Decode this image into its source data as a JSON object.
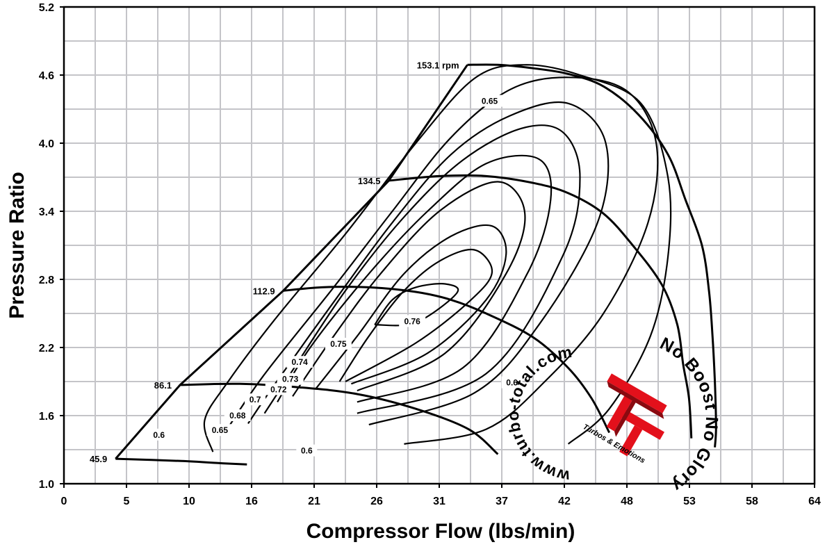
{
  "chart_data": {
    "type": "line",
    "title": "",
    "xlabel": "Compressor Flow (lbs/min)",
    "ylabel": "Pressure Ratio",
    "x_ticks": [
      "0",
      "5",
      "10",
      "16",
      "21",
      "26",
      "31",
      "37",
      "42",
      "48",
      "53",
      "58",
      "64"
    ],
    "y_ticks": [
      "1.0",
      "1.6",
      "2.2",
      "2.8",
      "3.4",
      "4.0",
      "4.6",
      "5.2"
    ],
    "xlim": [
      0,
      64
    ],
    "ylim": [
      1.0,
      5.2
    ],
    "grid": true,
    "speed_lines": [
      {
        "name": "45.9",
        "points": [
          [
            4.4,
            1.22
          ],
          [
            10,
            1.2
          ],
          [
            13.5,
            1.18
          ],
          [
            15.6,
            1.17
          ]
        ]
      },
      {
        "name": "86.1",
        "points": [
          [
            9.9,
            1.87
          ],
          [
            15,
            1.88
          ],
          [
            20,
            1.85
          ],
          [
            25,
            1.79
          ],
          [
            30,
            1.66
          ],
          [
            34.5,
            1.48
          ],
          [
            37,
            1.26
          ]
        ]
      },
      {
        "name": "112.9",
        "points": [
          [
            18.7,
            2.7
          ],
          [
            22,
            2.73
          ],
          [
            26,
            2.73
          ],
          [
            30,
            2.69
          ],
          [
            33,
            2.62
          ],
          [
            36,
            2.5
          ],
          [
            40,
            2.29
          ],
          [
            43,
            2.02
          ],
          [
            45,
            1.75
          ],
          [
            46.5,
            1.45
          ]
        ]
      },
      {
        "name": "134.5",
        "points": [
          [
            27.7,
            3.67
          ],
          [
            32,
            3.71
          ],
          [
            36,
            3.71
          ],
          [
            40,
            3.65
          ],
          [
            43,
            3.56
          ],
          [
            46,
            3.38
          ],
          [
            48.5,
            3.1
          ],
          [
            51,
            2.75
          ],
          [
            52.3,
            2.4
          ],
          [
            52.8,
            2.05
          ],
          [
            53.3,
            1.75
          ],
          [
            53.5,
            1.4
          ]
        ]
      },
      {
        "name": "153.1 rpm",
        "points": [
          [
            34.4,
            4.69
          ],
          [
            37,
            4.69
          ],
          [
            40,
            4.66
          ],
          [
            43,
            4.61
          ],
          [
            46,
            4.5
          ],
          [
            49,
            4.25
          ],
          [
            51.5,
            3.9
          ],
          [
            53,
            3.5
          ],
          [
            54.4,
            3.1
          ],
          [
            55,
            2.7
          ],
          [
            55.3,
            2.3
          ],
          [
            55.5,
            1.9
          ],
          [
            55.6,
            1.5
          ],
          [
            55.5,
            1.32
          ]
        ]
      }
    ],
    "surge_line": [
      [
        4.4,
        1.22
      ],
      [
        9.9,
        1.87
      ],
      [
        18.7,
        2.7
      ],
      [
        27.7,
        3.67
      ],
      [
        34.4,
        4.69
      ]
    ],
    "efficiency_islands": [
      {
        "name": "0.76",
        "points": [
          [
            26.5,
            2.4
          ],
          [
            28,
            2.62
          ],
          [
            30,
            2.73
          ],
          [
            32.5,
            2.76
          ],
          [
            33.5,
            2.68
          ],
          [
            30,
            2.42
          ],
          [
            26.5,
            2.4
          ]
        ]
      },
      {
        "name": "0.75",
        "points": [
          [
            23.5,
            1.9
          ],
          [
            26,
            2.3
          ],
          [
            29,
            2.7
          ],
          [
            32,
            2.96
          ],
          [
            35,
            3.06
          ],
          [
            36.5,
            2.86
          ],
          [
            34.5,
            2.6
          ],
          [
            30,
            2.24
          ],
          [
            24,
            1.9
          ]
        ]
      },
      {
        "name": "0.74",
        "points": [
          [
            21.5,
            1.84
          ],
          [
            25,
            2.3
          ],
          [
            29,
            2.85
          ],
          [
            33,
            3.18
          ],
          [
            36.5,
            3.27
          ],
          [
            37.7,
            3.02
          ],
          [
            36,
            2.62
          ],
          [
            31,
            2.15
          ],
          [
            24.5,
            1.88
          ]
        ]
      },
      {
        "name": "0.73",
        "points": [
          [
            19.5,
            1.77
          ],
          [
            23,
            2.3
          ],
          [
            27,
            2.85
          ],
          [
            32,
            3.4
          ],
          [
            37,
            3.66
          ],
          [
            39.3,
            3.38
          ],
          [
            37.7,
            2.85
          ],
          [
            32.5,
            2.15
          ],
          [
            25,
            1.82
          ]
        ]
      },
      {
        "name": "0.72",
        "points": [
          [
            18.2,
            1.72
          ],
          [
            21,
            2.2
          ],
          [
            26,
            2.85
          ],
          [
            31,
            3.4
          ],
          [
            36,
            3.82
          ],
          [
            40.5,
            3.86
          ],
          [
            41.5,
            3.5
          ],
          [
            39.5,
            2.85
          ],
          [
            34,
            2.02
          ],
          [
            25,
            1.72
          ]
        ]
      },
      {
        "name": "0.7",
        "points": [
          [
            17.1,
            1.62
          ],
          [
            19.5,
            2.0
          ],
          [
            24,
            2.7
          ],
          [
            29,
            3.35
          ],
          [
            34,
            3.85
          ],
          [
            39,
            4.13
          ],
          [
            42.5,
            4.1
          ],
          [
            44,
            3.7
          ],
          [
            42.5,
            3.0
          ],
          [
            36,
            1.97
          ],
          [
            25,
            1.62
          ]
        ]
      },
      {
        "name": "0.68",
        "points": [
          [
            15.7,
            1.53
          ],
          [
            18,
            1.88
          ],
          [
            23,
            2.6
          ],
          [
            28,
            3.3
          ],
          [
            33,
            3.9
          ],
          [
            38,
            4.24
          ],
          [
            43,
            4.35
          ],
          [
            46.2,
            4.0
          ],
          [
            45.5,
            3.3
          ],
          [
            40.5,
            2.4
          ],
          [
            35,
            1.8
          ],
          [
            26,
            1.52
          ]
        ]
      },
      {
        "name": "0.65",
        "points": [
          [
            13.6,
            1.43
          ],
          [
            17,
            1.95
          ],
          [
            23,
            2.73
          ],
          [
            28,
            3.4
          ],
          [
            33,
            4.05
          ],
          [
            38,
            4.47
          ],
          [
            43,
            4.58
          ],
          [
            48,
            4.46
          ],
          [
            50.5,
            4.0
          ],
          [
            49.8,
            3.3
          ],
          [
            46,
            2.5
          ],
          [
            41,
            1.9
          ],
          [
            36,
            1.48
          ],
          [
            29,
            1.35
          ]
        ]
      },
      {
        "name": "0.6",
        "points": [
          [
            12.7,
            1.28
          ],
          [
            12,
            1.56
          ],
          [
            14,
            1.9
          ],
          [
            18,
            2.45
          ],
          [
            24,
            3.2
          ],
          [
            30,
            4.0
          ],
          [
            35,
            4.57
          ],
          [
            39.2,
            4.69
          ],
          [
            44,
            4.6
          ],
          [
            49.2,
            4.35
          ],
          [
            51.5,
            3.7
          ],
          [
            51.5,
            3.0
          ],
          [
            50,
            2.3
          ],
          [
            46.5,
            1.66
          ],
          [
            43,
            1.35
          ]
        ]
      }
    ]
  },
  "watermark": {
    "url_text": "www.turbo-total.com",
    "slogan_text": "No Boost No Glory",
    "tagline_text": "Turbos & Emotions",
    "logo_color": "#e3101b"
  }
}
